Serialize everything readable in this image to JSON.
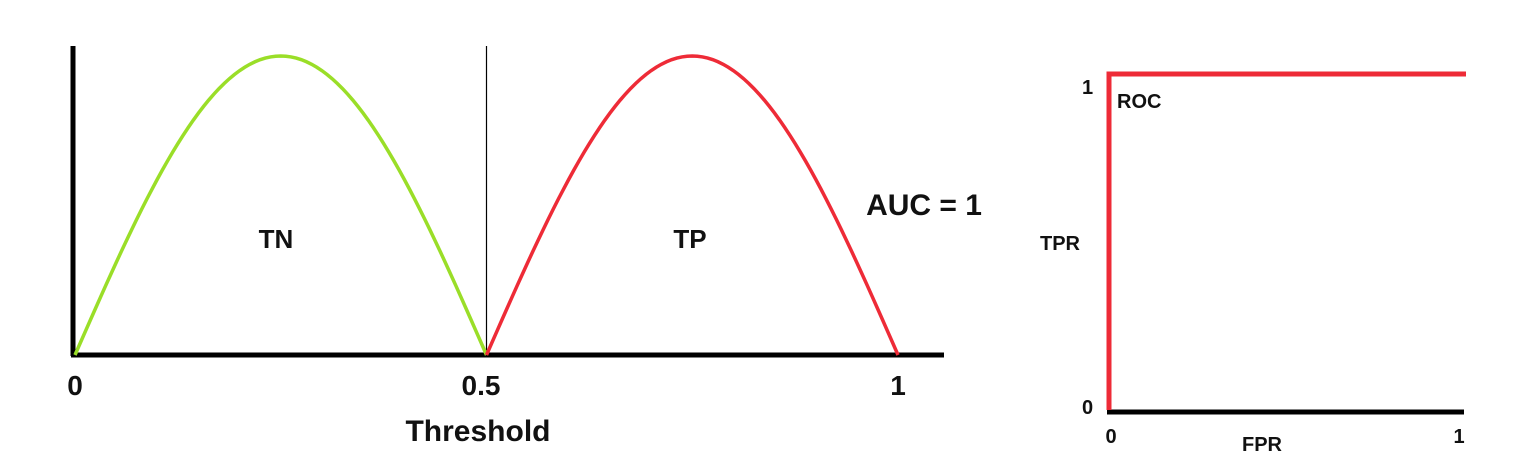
{
  "chart_data": [
    {
      "type": "line",
      "xlabel": "Threshold",
      "x_ticks": [
        "0",
        "0.5",
        "1"
      ],
      "xlim": [
        0,
        1
      ],
      "ylim": [
        0,
        1
      ],
      "threshold": 0.5,
      "curves": [
        {
          "label": "TN",
          "x_range": [
            0,
            0.5
          ],
          "peak": 1,
          "color": "#9ade28"
        },
        {
          "label": "TP",
          "x_range": [
            0.5,
            1
          ],
          "peak": 1,
          "color": "#ee2b37"
        }
      ],
      "annotation": "AUC = 1"
    },
    {
      "type": "line",
      "title": "ROC",
      "xlabel": "FPR",
      "ylabel": "TPR",
      "x_ticks": [
        "0",
        "1"
      ],
      "y_ticks": [
        "0",
        "1"
      ],
      "xlim": [
        0,
        1
      ],
      "ylim": [
        0,
        1
      ],
      "series": [
        {
          "x": [
            0,
            0,
            1
          ],
          "y": [
            0,
            1,
            1
          ],
          "color": "#ee2b37"
        }
      ]
    }
  ]
}
